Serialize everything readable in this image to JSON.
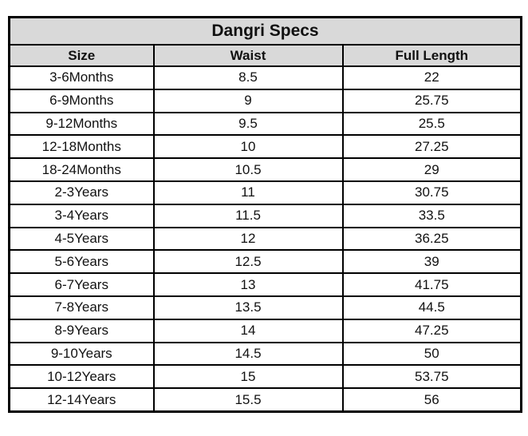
{
  "page_title": "Dangri Specs",
  "colors": {
    "header_background": "#d9d9d9",
    "row_background": "#ffffff",
    "border": "#000000",
    "text": "#111111"
  },
  "chart_data": {
    "type": "table",
    "title": "Dangri Specs",
    "columns": [
      "Size",
      "Waist",
      "Full Length"
    ],
    "rows": [
      [
        "3-6Months",
        "8.5",
        "22"
      ],
      [
        "6-9Months",
        "9",
        "25.75"
      ],
      [
        "9-12Months",
        "9.5",
        "25.5"
      ],
      [
        "12-18Months",
        "10",
        "27.25"
      ],
      [
        "18-24Months",
        "10.5",
        "29"
      ],
      [
        "2-3Years",
        "11",
        "30.75"
      ],
      [
        "3-4Years",
        "11.5",
        "33.5"
      ],
      [
        "4-5Years",
        "12",
        "36.25"
      ],
      [
        "5-6Years",
        "12.5",
        "39"
      ],
      [
        "6-7Years",
        "13",
        "41.75"
      ],
      [
        "7-8Years",
        "13.5",
        "44.5"
      ],
      [
        "8-9Years",
        "14",
        "47.25"
      ],
      [
        "9-10Years",
        "14.5",
        "50"
      ],
      [
        "10-12Years",
        "15",
        "53.75"
      ],
      [
        "12-14Years",
        "15.5",
        "56"
      ]
    ]
  }
}
